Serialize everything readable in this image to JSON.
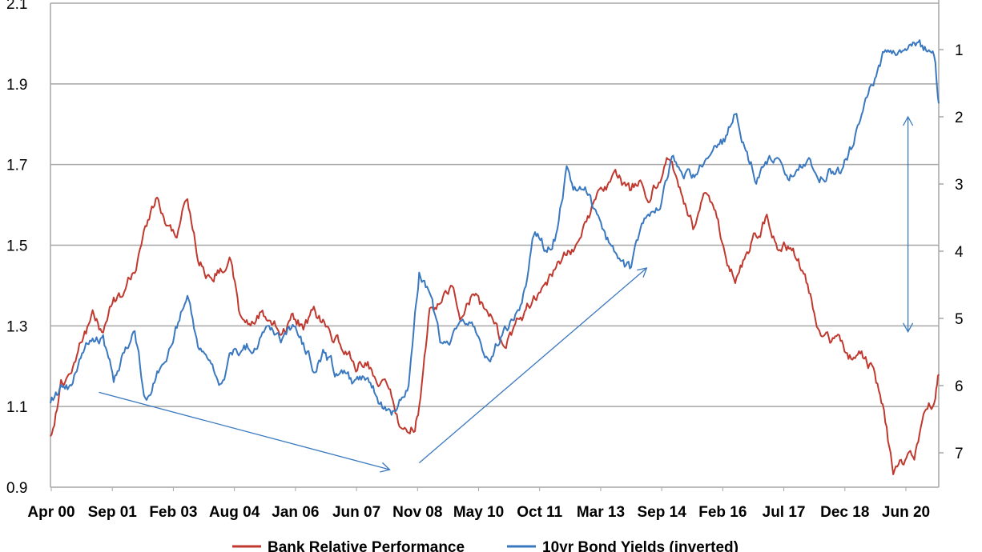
{
  "chart_data": {
    "type": "line",
    "title": "",
    "xlabel": "",
    "ylabel": "",
    "y_left": {
      "lim": [
        0.9,
        2.1
      ],
      "ticks": [
        "0.9",
        "1.1",
        "1.3",
        "1.5",
        "1.7",
        "1.9",
        "2.1"
      ]
    },
    "y_right": {
      "lim": [
        7.5,
        0.5
      ],
      "inverted": true,
      "ticks": [
        "1",
        "2",
        "3",
        "4",
        "5",
        "6",
        "7"
      ]
    },
    "x_tick_labels": [
      "Apr 00",
      "Sep 01",
      "Feb 03",
      "Aug 04",
      "Jan 06",
      "Jun 07",
      "Nov 08",
      "May 10",
      "Oct 11",
      "Mar 13",
      "Sep 14",
      "Feb 16",
      "Jul 17",
      "Dec 18",
      "Jun 20"
    ],
    "grid": "horizontal",
    "legend_position": "bottom",
    "colors": {
      "bank": "#c0392f",
      "bond": "#3a78bf",
      "grid": "#a6a6a6",
      "arrow": "#3a78bf"
    },
    "series": [
      {
        "name": "Bank Relative Performance",
        "axis": "left",
        "points": [
          [
            "2000.25",
            1.02
          ],
          [
            "2000.5",
            1.15
          ],
          [
            "2000.75",
            1.2
          ],
          [
            "2001.0",
            1.27
          ],
          [
            "2001.25",
            1.32
          ],
          [
            "2001.5",
            1.28
          ],
          [
            "2001.75",
            1.37
          ],
          [
            "2002.0",
            1.38
          ],
          [
            "2002.25",
            1.43
          ],
          [
            "2002.5",
            1.56
          ],
          [
            "2002.75",
            1.62
          ],
          [
            "2003.0",
            1.55
          ],
          [
            "2003.25",
            1.52
          ],
          [
            "2003.5",
            1.62
          ],
          [
            "2003.75",
            1.47
          ],
          [
            "2004.0",
            1.43
          ],
          [
            "2004.25",
            1.45
          ],
          [
            "2004.5",
            1.46
          ],
          [
            "2004.75",
            1.32
          ],
          [
            "2005.0",
            1.29
          ],
          [
            "2005.25",
            1.33
          ],
          [
            "2005.5",
            1.3
          ],
          [
            "2005.75",
            1.28
          ],
          [
            "2006.0",
            1.32
          ],
          [
            "2006.25",
            1.3
          ],
          [
            "2006.5",
            1.33
          ],
          [
            "2006.75",
            1.3
          ],
          [
            "2007.0",
            1.27
          ],
          [
            "2007.25",
            1.24
          ],
          [
            "2007.5",
            1.2
          ],
          [
            "2007.75",
            1.22
          ],
          [
            "2008.0",
            1.17
          ],
          [
            "2008.25",
            1.16
          ],
          [
            "2008.5",
            1.07
          ],
          [
            "2008.75",
            1.02
          ],
          [
            "2008.9",
            1.05
          ],
          [
            "2009.0",
            1.1
          ],
          [
            "2009.25",
            1.33
          ],
          [
            "2009.5",
            1.35
          ],
          [
            "2009.75",
            1.4
          ],
          [
            "2010.0",
            1.33
          ],
          [
            "2010.25",
            1.38
          ],
          [
            "2010.5",
            1.34
          ],
          [
            "2010.75",
            1.32
          ],
          [
            "2011.0",
            1.24
          ],
          [
            "2011.25",
            1.29
          ],
          [
            "2011.5",
            1.33
          ],
          [
            "2011.75",
            1.37
          ],
          [
            "2012.0",
            1.41
          ],
          [
            "2012.25",
            1.45
          ],
          [
            "2012.5",
            1.47
          ],
          [
            "2012.75",
            1.5
          ],
          [
            "2013.0",
            1.56
          ],
          [
            "2013.25",
            1.63
          ],
          [
            "2013.5",
            1.64
          ],
          [
            "2013.75",
            1.66
          ],
          [
            "2014.0",
            1.63
          ],
          [
            "2014.25",
            1.67
          ],
          [
            "2014.5",
            1.62
          ],
          [
            "2014.75",
            1.68
          ],
          [
            "2015.0",
            1.73
          ],
          [
            "2015.25",
            1.62
          ],
          [
            "2015.5",
            1.55
          ],
          [
            "2015.75",
            1.62
          ],
          [
            "2016.0",
            1.58
          ],
          [
            "2016.25",
            1.48
          ],
          [
            "2016.5",
            1.42
          ],
          [
            "2016.75",
            1.47
          ],
          [
            "2017.0",
            1.52
          ],
          [
            "2017.25",
            1.57
          ],
          [
            "2017.5",
            1.49
          ],
          [
            "2017.75",
            1.5
          ],
          [
            "2018.0",
            1.46
          ],
          [
            "2018.25",
            1.38
          ],
          [
            "2018.5",
            1.3
          ],
          [
            "2018.75",
            1.26
          ],
          [
            "2019.0",
            1.25
          ],
          [
            "2019.25",
            1.22
          ],
          [
            "2019.5",
            1.23
          ],
          [
            "2019.75",
            1.2
          ],
          [
            "2020.0",
            1.1
          ],
          [
            "2020.25",
            0.93
          ],
          [
            "2020.5",
            0.95
          ],
          [
            "2020.75",
            0.97
          ],
          [
            "2021.0",
            1.06
          ],
          [
            "2021.25",
            1.12
          ],
          [
            "2021.33",
            1.18
          ]
        ]
      },
      {
        "name": "10yr Bond Yields (inverted)",
        "axis": "right",
        "points": [
          [
            "2000.25",
            6.3
          ],
          [
            "2000.5",
            6.1
          ],
          [
            "2000.75",
            6.0
          ],
          [
            "2001.0",
            5.6
          ],
          [
            "2001.25",
            5.2
          ],
          [
            "2001.5",
            5.3
          ],
          [
            "2001.75",
            5.9
          ],
          [
            "2002.0",
            5.5
          ],
          [
            "2002.25",
            5.2
          ],
          [
            "2002.5",
            6.2
          ],
          [
            "2002.75",
            5.9
          ],
          [
            "2003.0",
            5.6
          ],
          [
            "2003.25",
            5.1
          ],
          [
            "2003.5",
            4.7
          ],
          [
            "2003.75",
            5.5
          ],
          [
            "2004.0",
            5.6
          ],
          [
            "2004.25",
            5.9
          ],
          [
            "2004.5",
            5.6
          ],
          [
            "2004.75",
            5.5
          ],
          [
            "2005.0",
            5.4
          ],
          [
            "2005.25",
            5.3
          ],
          [
            "2005.5",
            5.2
          ],
          [
            "2005.75",
            5.3
          ],
          [
            "2006.0",
            5.1
          ],
          [
            "2006.25",
            5.4
          ],
          [
            "2006.5",
            5.7
          ],
          [
            "2006.75",
            5.5
          ],
          [
            "2007.0",
            5.8
          ],
          [
            "2007.25",
            5.8
          ],
          [
            "2007.5",
            6.0
          ],
          [
            "2007.75",
            5.9
          ],
          [
            "2008.0",
            6.1
          ],
          [
            "2008.25",
            6.4
          ],
          [
            "2008.5",
            6.4
          ],
          [
            "2008.75",
            6.0
          ],
          [
            "2008.9",
            5.0
          ],
          [
            "2009.0",
            4.3
          ],
          [
            "2009.25",
            4.7
          ],
          [
            "2009.5",
            5.3
          ],
          [
            "2009.75",
            5.4
          ],
          [
            "2010.0",
            5.1
          ],
          [
            "2010.25",
            5.0
          ],
          [
            "2010.5",
            5.6
          ],
          [
            "2010.75",
            5.5
          ],
          [
            "2011.0",
            5.2
          ],
          [
            "2011.25",
            5.0
          ],
          [
            "2011.5",
            4.6
          ],
          [
            "2011.75",
            3.7
          ],
          [
            "2012.0",
            4.0
          ],
          [
            "2012.25",
            3.7
          ],
          [
            "2012.5",
            2.8
          ],
          [
            "2012.75",
            3.1
          ],
          [
            "2013.0",
            3.2
          ],
          [
            "2013.25",
            3.6
          ],
          [
            "2013.5",
            3.9
          ],
          [
            "2013.75",
            4.2
          ],
          [
            "2014.0",
            4.3
          ],
          [
            "2014.25",
            3.8
          ],
          [
            "2014.5",
            3.4
          ],
          [
            "2014.75",
            3.3
          ],
          [
            "2015.0",
            2.6
          ],
          [
            "2015.25",
            2.8
          ],
          [
            "2015.5",
            2.9
          ],
          [
            "2015.75",
            2.7
          ],
          [
            "2016.0",
            2.5
          ],
          [
            "2016.25",
            2.4
          ],
          [
            "2016.5",
            1.9
          ],
          [
            "2016.75",
            2.5
          ],
          [
            "2017.0",
            2.9
          ],
          [
            "2017.25",
            2.7
          ],
          [
            "2017.5",
            2.6
          ],
          [
            "2017.75",
            2.9
          ],
          [
            "2018.0",
            2.8
          ],
          [
            "2018.25",
            2.7
          ],
          [
            "2018.5",
            2.9
          ],
          [
            "2018.75",
            2.8
          ],
          [
            "2019.0",
            2.9
          ],
          [
            "2019.25",
            2.5
          ],
          [
            "2019.5",
            2.0
          ],
          [
            "2019.75",
            1.5
          ],
          [
            "2020.0",
            1.1
          ],
          [
            "2020.25",
            0.95
          ],
          [
            "2020.5",
            1.0
          ],
          [
            "2020.75",
            0.95
          ],
          [
            "2021.0",
            1.0
          ],
          [
            "2021.25",
            1.2
          ],
          [
            "2021.33",
            1.8
          ]
        ]
      }
    ],
    "annotations": [
      {
        "type": "arrow",
        "from": [
          "2001.4",
          6.1
        ],
        "to": [
          "2008.3",
          7.25
        ],
        "axis": "right",
        "head": "end"
      },
      {
        "type": "arrow",
        "from": [
          "2009.0",
          7.15
        ],
        "to": [
          "2014.4",
          4.25
        ],
        "axis": "right",
        "head": "end"
      },
      {
        "type": "arrow",
        "from": [
          "2020.6",
          2.0
        ],
        "to": [
          "2020.6",
          5.2
        ],
        "axis": "right",
        "head": "both"
      }
    ]
  }
}
